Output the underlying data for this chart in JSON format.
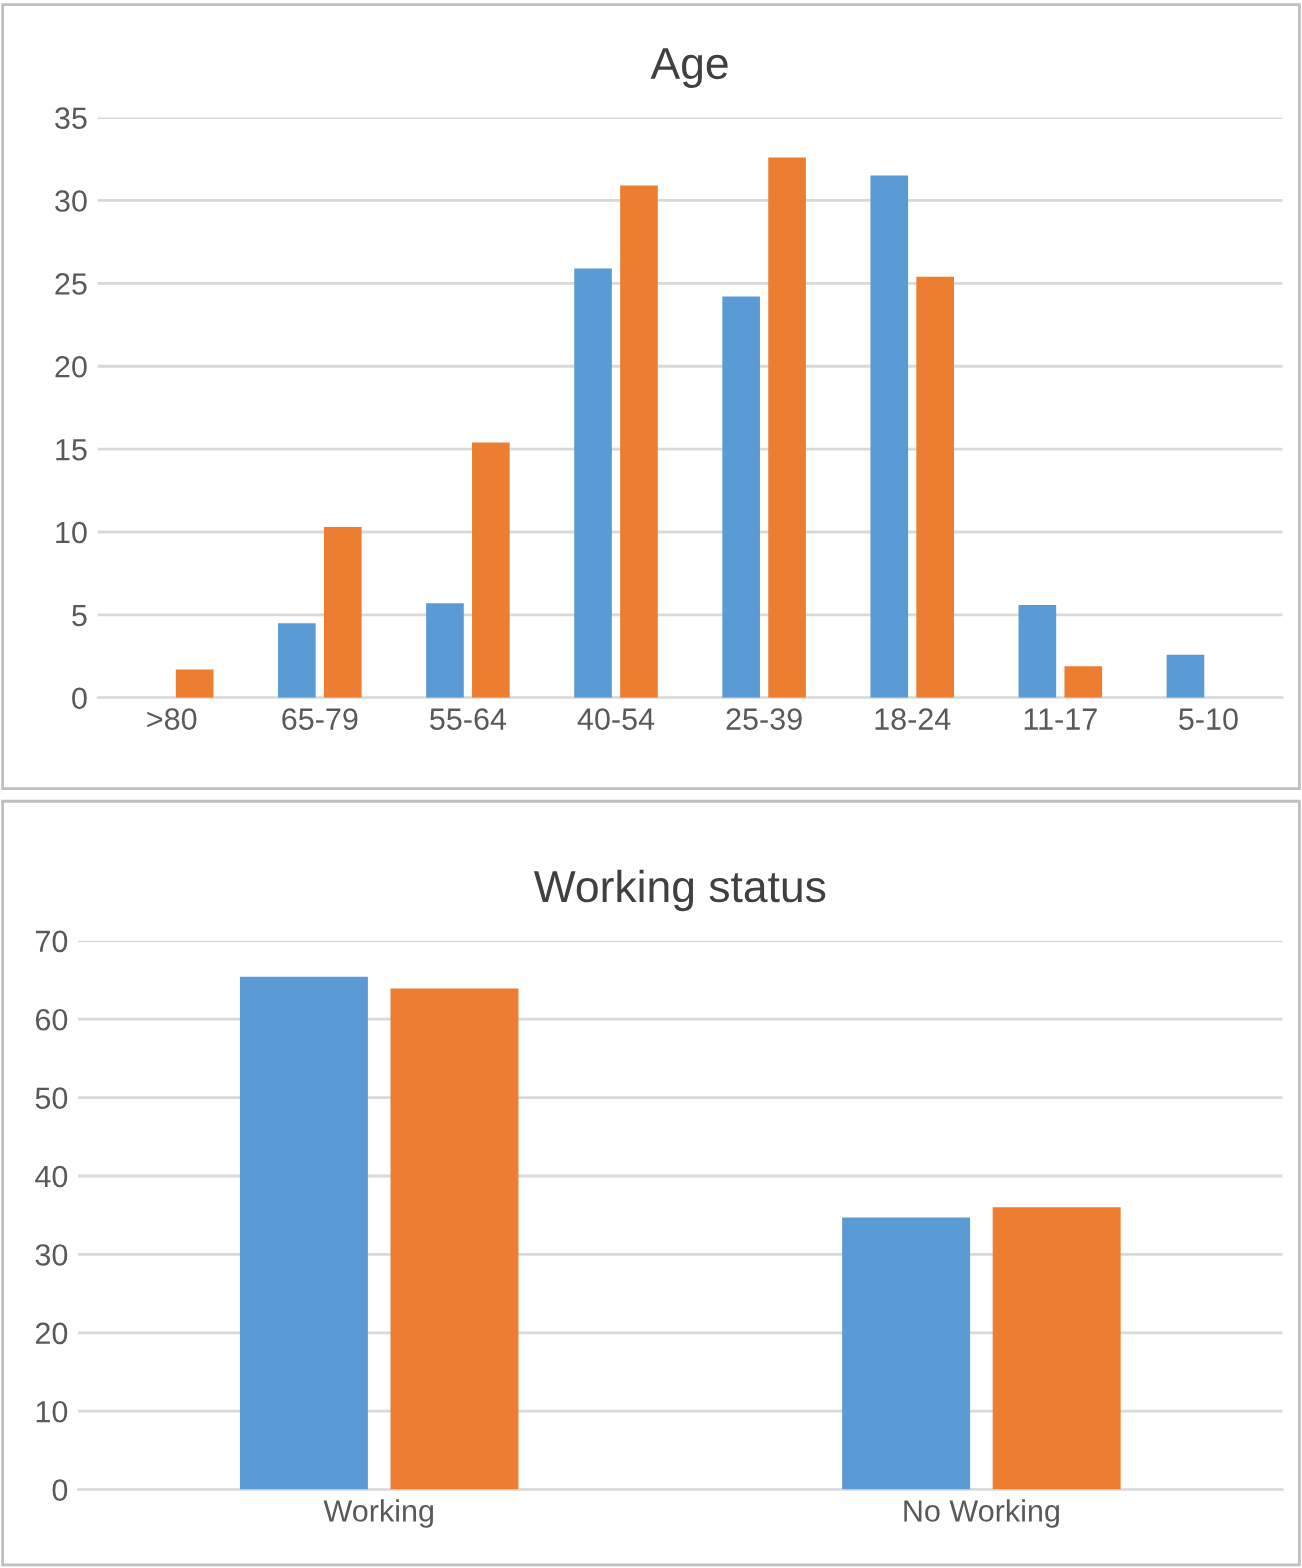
{
  "chart_data": [
    {
      "type": "bar",
      "title": "Age",
      "categories": [
        ">80",
        "65-79",
        "55-64",
        "40-54",
        "25-39",
        "18-24",
        "11-17",
        "5-10"
      ],
      "series": [
        {
          "color": "#5b9bd5",
          "values": [
            0,
            4.5,
            5.7,
            25.9,
            24.2,
            31.5,
            5.6,
            2.6
          ]
        },
        {
          "color": "#ed7d31",
          "values": [
            1.7,
            10.3,
            15.4,
            30.9,
            32.6,
            25.4,
            1.9,
            0
          ]
        }
      ],
      "ylim": [
        0,
        35
      ],
      "yticks": [
        0,
        5,
        10,
        15,
        20,
        25,
        30,
        35
      ],
      "grid": "y",
      "legend": false
    },
    {
      "type": "bar",
      "title": "Working status",
      "categories": [
        "Working",
        "No Working"
      ],
      "series": [
        {
          "color": "#5b9bd5",
          "values": [
            65.4,
            34.7
          ]
        },
        {
          "color": "#ed7d31",
          "values": [
            63.9,
            36.0
          ]
        }
      ],
      "ylim": [
        0,
        70
      ],
      "yticks": [
        0,
        10,
        20,
        30,
        40,
        50,
        60,
        70
      ],
      "grid": "y",
      "legend": false
    }
  ]
}
